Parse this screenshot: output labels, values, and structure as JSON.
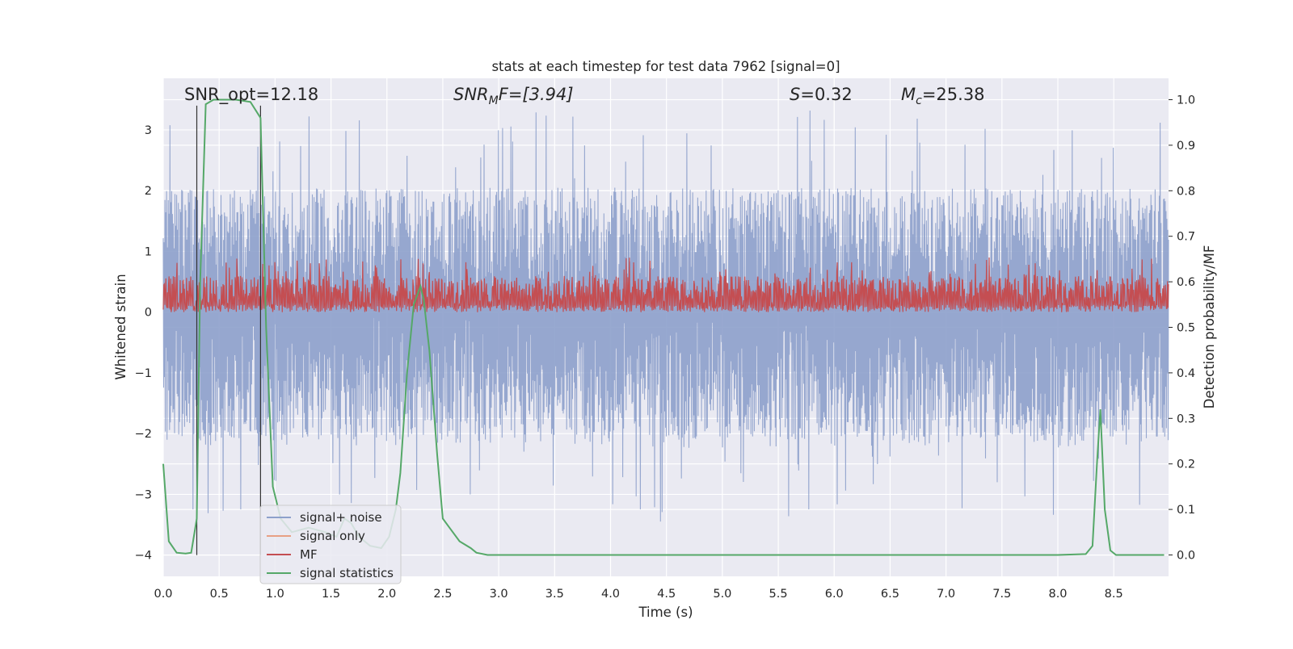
{
  "chart_data": {
    "type": "line",
    "title": "stats at each timestep for test data 7962 [signal=0]",
    "xlabel": "Time (s)",
    "ylabel": "Whitened strain",
    "y2label": "Detection probability/MF",
    "xlim": [
      0,
      8.99
    ],
    "ylim": [
      -4.35,
      3.85
    ],
    "y2lim": [
      -0.047,
      1.047
    ],
    "xticks": [
      "0.0",
      "0.5",
      "1.0",
      "1.5",
      "2.0",
      "2.5",
      "3.0",
      "3.5",
      "4.0",
      "4.5",
      "5.0",
      "5.5",
      "6.0",
      "6.5",
      "7.0",
      "7.5",
      "8.0",
      "8.5"
    ],
    "yticks": [
      "−4",
      "−3",
      "−2",
      "−1",
      "0",
      "1",
      "2",
      "3"
    ],
    "y2ticks": [
      "0.0",
      "0.1",
      "0.2",
      "0.3",
      "0.4",
      "0.5",
      "0.6",
      "0.7",
      "0.8",
      "0.9",
      "1.0"
    ],
    "grid": true,
    "legend_position": "lower-left",
    "annotations": {
      "snr_opt": "SNR_opt=12.18",
      "snr_mf_prefix": "SNR",
      "snr_mf_sub": "M",
      "snr_mf_suffix": "F=[3.94]",
      "s_sym": "S",
      "s_value": "=0.32",
      "mc_sym": "M",
      "mc_sub": "c",
      "mc_value": "=25.38"
    },
    "markers": [
      0.3,
      0.87
    ],
    "series": [
      {
        "name": "signal+ noise",
        "axis": "left",
        "color": "#8da0cb",
        "description_range": [
          -3.8,
          3.4
        ]
      },
      {
        "name": "signal only",
        "axis": "left",
        "color": "#e8a084",
        "x": [],
        "y": []
      },
      {
        "name": "MF",
        "axis": "left",
        "color": "#c44e52",
        "description_range": [
          0.0,
          1.0
        ]
      },
      {
        "name": "signal statistics",
        "axis": "right",
        "color": "#55a868",
        "x": [
          0.0,
          0.05,
          0.12,
          0.2,
          0.25,
          0.3,
          0.33,
          0.38,
          0.45,
          0.55,
          0.65,
          0.78,
          0.87,
          0.92,
          0.98,
          1.05,
          1.15,
          1.3,
          1.45,
          1.55,
          1.62,
          1.68,
          1.75,
          1.85,
          1.95,
          2.02,
          2.08,
          2.12,
          2.18,
          2.24,
          2.3,
          2.33,
          2.38,
          2.45,
          2.5,
          2.56,
          2.65,
          2.75,
          2.8,
          2.9,
          3.5,
          4.5,
          5.5,
          6.5,
          7.5,
          8.0,
          8.25,
          8.31,
          8.35,
          8.38,
          8.42,
          8.47,
          8.52,
          8.6,
          8.95
        ],
        "y": [
          0.2,
          0.03,
          0.005,
          0.003,
          0.005,
          0.08,
          0.6,
          0.99,
          1.0,
          1.0,
          1.0,
          0.995,
          0.96,
          0.5,
          0.15,
          0.08,
          0.05,
          0.06,
          0.05,
          0.04,
          0.08,
          0.07,
          0.04,
          0.02,
          0.015,
          0.04,
          0.1,
          0.18,
          0.4,
          0.55,
          0.59,
          0.56,
          0.45,
          0.22,
          0.08,
          0.06,
          0.03,
          0.015,
          0.005,
          0.0,
          0.0,
          0.0,
          0.0,
          0.0,
          0.0,
          0.0,
          0.002,
          0.02,
          0.2,
          0.32,
          0.1,
          0.01,
          0.0,
          0.0,
          0.0
        ]
      }
    ]
  }
}
